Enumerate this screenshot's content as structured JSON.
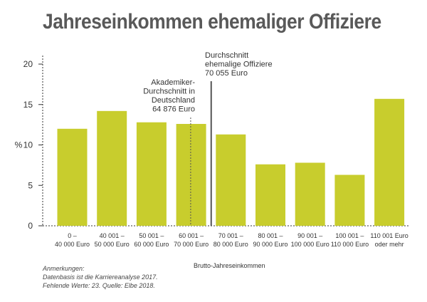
{
  "title": "Jahreseinkommen ehemaliger Offiziere",
  "notes": {
    "heading": "Anmerkungen:",
    "line1": "Datenbasis ist die Karriereanalyse 2017.",
    "line2": "Fehlende Werte: 23. Quelle: Elbe 2018."
  },
  "colors": {
    "bar": "#c8cd2d",
    "axis": "#333333",
    "ref_line": "#555555"
  },
  "chart_data": {
    "type": "bar",
    "ylabel": "%",
    "xlabel": "Brutto-Jahreseinkommen",
    "ylim": [
      0,
      20
    ],
    "yticks": [
      0,
      5,
      10,
      15,
      20
    ],
    "grid": false,
    "categories": [
      [
        "0 –",
        "40 000 Euro"
      ],
      [
        "40 001 –",
        "50 000 Euro"
      ],
      [
        "50 001 –",
        "60 000 Euro"
      ],
      [
        "60 001 –",
        "70 000 Euro"
      ],
      [
        "70 001 –",
        "80 000 Euro"
      ],
      [
        "80 001 –",
        "90 000 Euro"
      ],
      [
        "90 001 –",
        "100 000 Euro"
      ],
      [
        "100 001 –",
        "110 000 Euro"
      ],
      [
        "110 001 Euro",
        "oder mehr"
      ]
    ],
    "values": [
      12.0,
      14.2,
      12.8,
      12.6,
      11.3,
      7.6,
      7.8,
      6.3,
      15.7
    ],
    "reference_lines": [
      {
        "label": [
          "Akademiker-",
          "Durchschnitt in",
          "Deutschland",
          "64 876 Euro"
        ],
        "value": 64876,
        "style": "dotted"
      },
      {
        "label": [
          "Durchschnitt",
          "ehemalige Offiziere",
          "70 055 Euro"
        ],
        "value": 70055,
        "style": "solid"
      }
    ]
  }
}
